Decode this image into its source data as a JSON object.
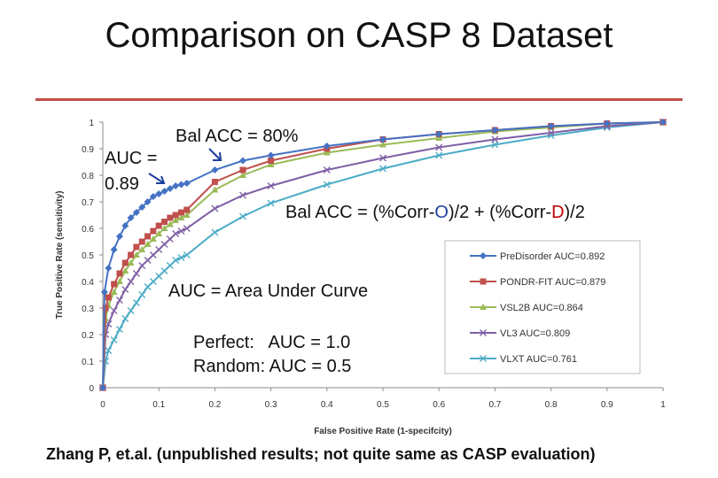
{
  "slide": {
    "title": "Comparison on CASP 8 Dataset",
    "citation": "Zhang P, et.al. (unpublished results; not quite same as CASP evaluation)"
  },
  "annotations": {
    "auc_line1": "AUC =",
    "auc_line2": "0.89",
    "bal_acc_label": "Bal ACC = 80%",
    "formula_part1": "Bal ACC = (%Corr-",
    "formula_o": "O",
    "formula_part2": ")/2 + (%Corr-",
    "formula_d": "D",
    "formula_part3": ")/2",
    "auc_def": "AUC = Area Under Curve",
    "perfect": "Perfect:   AUC = 1.0",
    "random": "Random: AUC = 0.5"
  },
  "chart_data": {
    "type": "line",
    "xlabel": "False Positive Rate (1-specifcity)",
    "ylabel": "True Positive Rate (sensitivity)",
    "xlim": [
      0,
      1
    ],
    "ylim": [
      0,
      1
    ],
    "x_ticks": [
      "0",
      "0.1",
      "0.2",
      "0.3",
      "0.4",
      "0.5",
      "0.6",
      "0.7",
      "0.8",
      "0.9",
      "1"
    ],
    "y_ticks": [
      "0",
      "0.1",
      "0.2",
      "0.3",
      "0.4",
      "0.5",
      "0.6",
      "0.7",
      "0.8",
      "0.9",
      "1"
    ],
    "grid": false,
    "legend_position": "right",
    "series": [
      {
        "name": "PreDisorder AUC=0.892",
        "color": "#4472c4",
        "marker": "diamond",
        "points": [
          [
            0,
            0
          ],
          [
            0.003,
            0.36
          ],
          [
            0.01,
            0.45
          ],
          [
            0.02,
            0.52
          ],
          [
            0.03,
            0.57
          ],
          [
            0.04,
            0.61
          ],
          [
            0.05,
            0.64
          ],
          [
            0.06,
            0.66
          ],
          [
            0.07,
            0.68
          ],
          [
            0.08,
            0.7
          ],
          [
            0.09,
            0.72
          ],
          [
            0.1,
            0.73
          ],
          [
            0.11,
            0.74
          ],
          [
            0.12,
            0.75
          ],
          [
            0.13,
            0.76
          ],
          [
            0.14,
            0.765
          ],
          [
            0.15,
            0.77
          ],
          [
            0.2,
            0.82
          ],
          [
            0.25,
            0.855
          ],
          [
            0.3,
            0.875
          ],
          [
            0.4,
            0.91
          ],
          [
            0.5,
            0.935
          ],
          [
            0.6,
            0.955
          ],
          [
            0.7,
            0.97
          ],
          [
            0.8,
            0.985
          ],
          [
            0.9,
            0.995
          ],
          [
            1,
            1
          ]
        ]
      },
      {
        "name": "PONDR-FIT AUC=0.879",
        "color": "#c0504d",
        "marker": "square",
        "points": [
          [
            0,
            0
          ],
          [
            0.005,
            0.3
          ],
          [
            0.01,
            0.34
          ],
          [
            0.02,
            0.39
          ],
          [
            0.03,
            0.43
          ],
          [
            0.04,
            0.47
          ],
          [
            0.05,
            0.5
          ],
          [
            0.06,
            0.53
          ],
          [
            0.07,
            0.55
          ],
          [
            0.08,
            0.57
          ],
          [
            0.09,
            0.59
          ],
          [
            0.1,
            0.61
          ],
          [
            0.11,
            0.625
          ],
          [
            0.12,
            0.64
          ],
          [
            0.13,
            0.65
          ],
          [
            0.14,
            0.66
          ],
          [
            0.15,
            0.67
          ],
          [
            0.2,
            0.775
          ],
          [
            0.25,
            0.82
          ],
          [
            0.3,
            0.855
          ],
          [
            0.4,
            0.9
          ],
          [
            0.5,
            0.935
          ],
          [
            0.6,
            0.955
          ],
          [
            0.7,
            0.97
          ],
          [
            0.8,
            0.985
          ],
          [
            0.9,
            0.995
          ],
          [
            1,
            1
          ]
        ]
      },
      {
        "name": "VSL2B AUC=0.864",
        "color": "#9bbb59",
        "marker": "triangle",
        "points": [
          [
            0,
            0
          ],
          [
            0.005,
            0.26
          ],
          [
            0.01,
            0.31
          ],
          [
            0.02,
            0.36
          ],
          [
            0.03,
            0.4
          ],
          [
            0.04,
            0.44
          ],
          [
            0.05,
            0.47
          ],
          [
            0.06,
            0.5
          ],
          [
            0.07,
            0.52
          ],
          [
            0.08,
            0.54
          ],
          [
            0.09,
            0.56
          ],
          [
            0.1,
            0.58
          ],
          [
            0.11,
            0.6
          ],
          [
            0.12,
            0.615
          ],
          [
            0.13,
            0.63
          ],
          [
            0.14,
            0.64
          ],
          [
            0.15,
            0.65
          ],
          [
            0.2,
            0.745
          ],
          [
            0.25,
            0.8
          ],
          [
            0.3,
            0.84
          ],
          [
            0.4,
            0.885
          ],
          [
            0.5,
            0.915
          ],
          [
            0.6,
            0.94
          ],
          [
            0.7,
            0.965
          ],
          [
            0.8,
            0.98
          ],
          [
            0.9,
            0.995
          ],
          [
            1,
            1
          ]
        ]
      },
      {
        "name": "VL3 AUC=0.809",
        "color": "#7f5fa5",
        "marker": "x",
        "points": [
          [
            0,
            0
          ],
          [
            0.005,
            0.2
          ],
          [
            0.01,
            0.24
          ],
          [
            0.02,
            0.29
          ],
          [
            0.03,
            0.33
          ],
          [
            0.04,
            0.37
          ],
          [
            0.05,
            0.4
          ],
          [
            0.06,
            0.43
          ],
          [
            0.07,
            0.46
          ],
          [
            0.08,
            0.48
          ],
          [
            0.09,
            0.5
          ],
          [
            0.1,
            0.52
          ],
          [
            0.11,
            0.54
          ],
          [
            0.12,
            0.56
          ],
          [
            0.13,
            0.58
          ],
          [
            0.14,
            0.59
          ],
          [
            0.15,
            0.6
          ],
          [
            0.2,
            0.675
          ],
          [
            0.25,
            0.725
          ],
          [
            0.3,
            0.76
          ],
          [
            0.4,
            0.82
          ],
          [
            0.5,
            0.865
          ],
          [
            0.6,
            0.905
          ],
          [
            0.7,
            0.935
          ],
          [
            0.8,
            0.96
          ],
          [
            0.9,
            0.985
          ],
          [
            1,
            1
          ]
        ]
      },
      {
        "name": "VLXT AUC=0.761",
        "color": "#4bacc6",
        "marker": "x",
        "points": [
          [
            0,
            0
          ],
          [
            0.005,
            0.1
          ],
          [
            0.01,
            0.14
          ],
          [
            0.02,
            0.18
          ],
          [
            0.03,
            0.22
          ],
          [
            0.04,
            0.26
          ],
          [
            0.05,
            0.29
          ],
          [
            0.06,
            0.32
          ],
          [
            0.07,
            0.35
          ],
          [
            0.08,
            0.38
          ],
          [
            0.09,
            0.4
          ],
          [
            0.1,
            0.42
          ],
          [
            0.11,
            0.44
          ],
          [
            0.12,
            0.46
          ],
          [
            0.13,
            0.48
          ],
          [
            0.14,
            0.49
          ],
          [
            0.15,
            0.5
          ],
          [
            0.2,
            0.585
          ],
          [
            0.25,
            0.645
          ],
          [
            0.3,
            0.695
          ],
          [
            0.4,
            0.765
          ],
          [
            0.5,
            0.825
          ],
          [
            0.6,
            0.875
          ],
          [
            0.7,
            0.915
          ],
          [
            0.8,
            0.95
          ],
          [
            0.9,
            0.98
          ],
          [
            1,
            1
          ]
        ]
      }
    ]
  }
}
